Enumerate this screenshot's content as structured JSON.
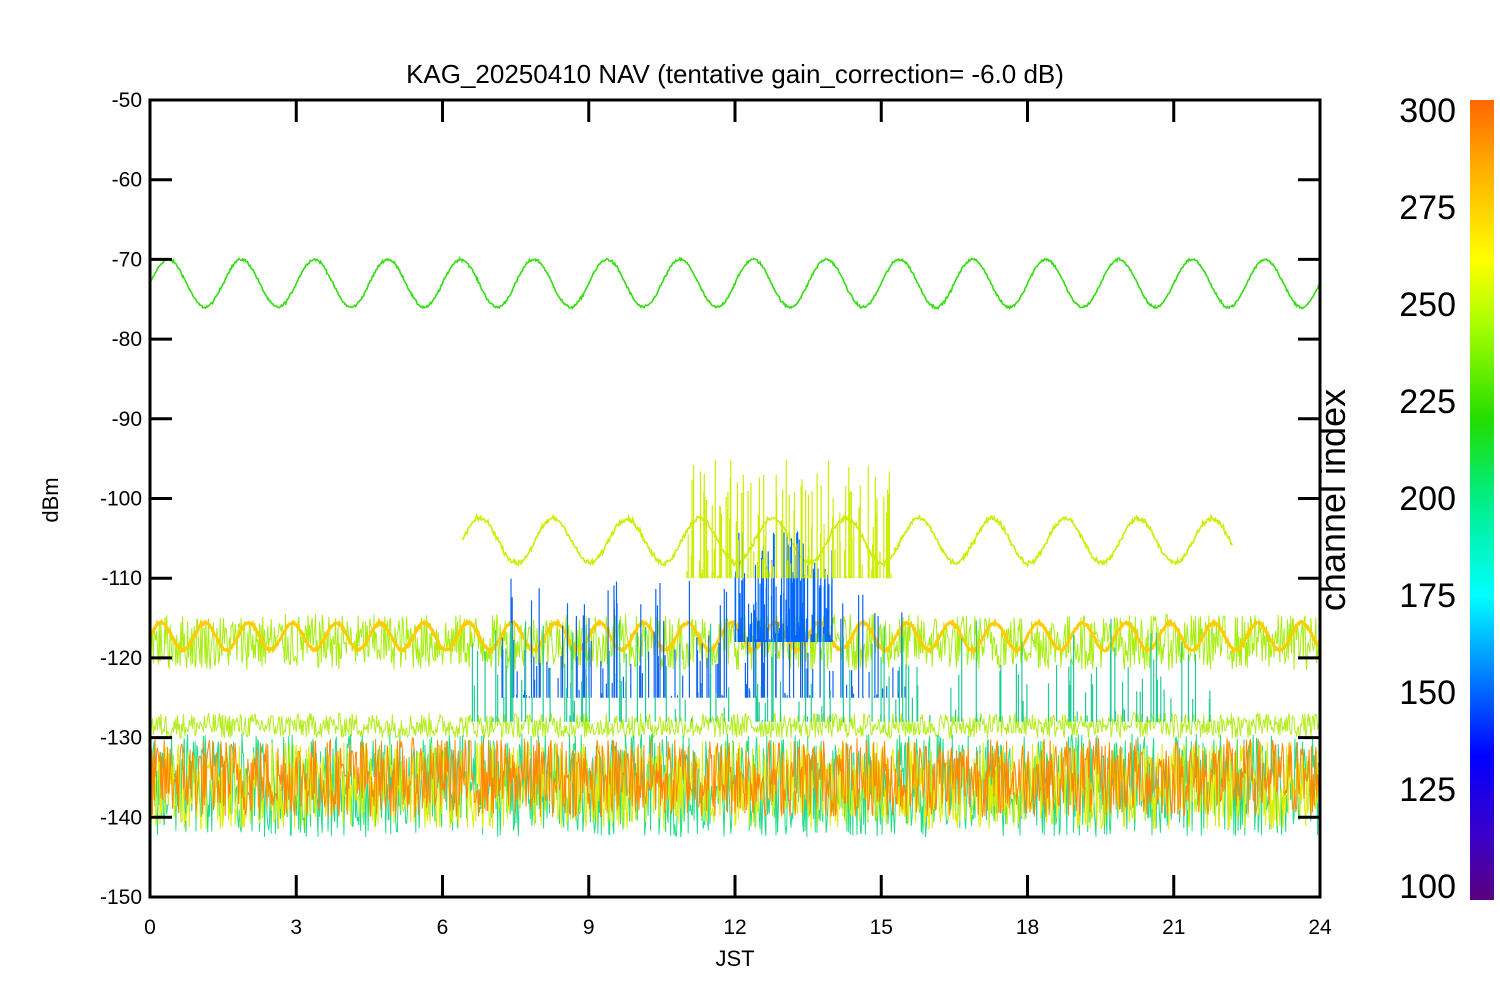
{
  "chart_data": {
    "type": "line",
    "title": "KAG_20250410 NAV (tentative gain_correction= -6.0 dB)",
    "xlabel": "JST",
    "ylabel": "dBm",
    "xlim": [
      0,
      24
    ],
    "ylim": [
      -150,
      -50
    ],
    "x_ticks": [
      "0",
      "3",
      "6",
      "9",
      "12",
      "15",
      "18",
      "21",
      "24"
    ],
    "y_ticks": [
      "-50",
      "-60",
      "-70",
      "-80",
      "-90",
      "-100",
      "-110",
      "-120",
      "-130",
      "-140",
      "-150"
    ],
    "colorbar": {
      "label": "channel index",
      "range": [
        100,
        300
      ],
      "ticks": [
        "300",
        "275",
        "250",
        "225",
        "200",
        "175",
        "150",
        "125",
        "100"
      ],
      "colormap": "rainbow"
    },
    "series": [
      {
        "channel": 240,
        "color": "#33dd11",
        "kind": "sine",
        "x_range": [
          0,
          24
        ],
        "center": -73,
        "amplitude": 3,
        "period_hours": 1.5,
        "noise": 0.3
      },
      {
        "channel": 262,
        "color": "#ccee00",
        "kind": "sine",
        "x_range": [
          6.4,
          22.2
        ],
        "center": -105.3,
        "amplitude": 2.8,
        "period_hours": 1.5,
        "noise": 0.6
      },
      {
        "channel": 255,
        "color": "#a8ee10",
        "kind": "band",
        "x_range": [
          0,
          24
        ],
        "center": -118,
        "spread": 3.5
      },
      {
        "channel": 280,
        "color": "#ffcc00",
        "kind": "sine",
        "x_range": [
          0,
          24
        ],
        "center": -117.3,
        "amplitude": 1.7,
        "period_hours": 0.9,
        "noise": 0.3
      },
      {
        "channel": 258,
        "color": "#b5ee20",
        "kind": "band",
        "x_range": [
          0,
          24
        ],
        "center": -128.5,
        "spread": 1.6
      },
      {
        "channel": 200,
        "color": "#22dd88",
        "kind": "band",
        "x_range": [
          0,
          24
        ],
        "center": -136,
        "spread": 6.5
      },
      {
        "channel": 265,
        "color": "#ddee00",
        "kind": "band",
        "x_range": [
          0,
          24
        ],
        "center": -136,
        "spread": 5.5
      },
      {
        "channel": 290,
        "color": "#ff8800",
        "kind": "band",
        "x_range": [
          0,
          24
        ],
        "center": -135,
        "spread": 5
      }
    ],
    "spikes": [
      {
        "color": "#1166ee",
        "x_range": [
          7.2,
          15.5
        ],
        "base": -125,
        "top": -110
      },
      {
        "color": "#0066ff",
        "x_range": [
          12,
          14
        ],
        "base": -118,
        "top": -104
      },
      {
        "color": "#22cc99",
        "x_range": [
          6.5,
          22
        ],
        "base": -128,
        "top": -115
      },
      {
        "color": "#ccee00",
        "x_range": [
          11,
          15.2
        ],
        "base": -110,
        "top": -95
      }
    ]
  }
}
